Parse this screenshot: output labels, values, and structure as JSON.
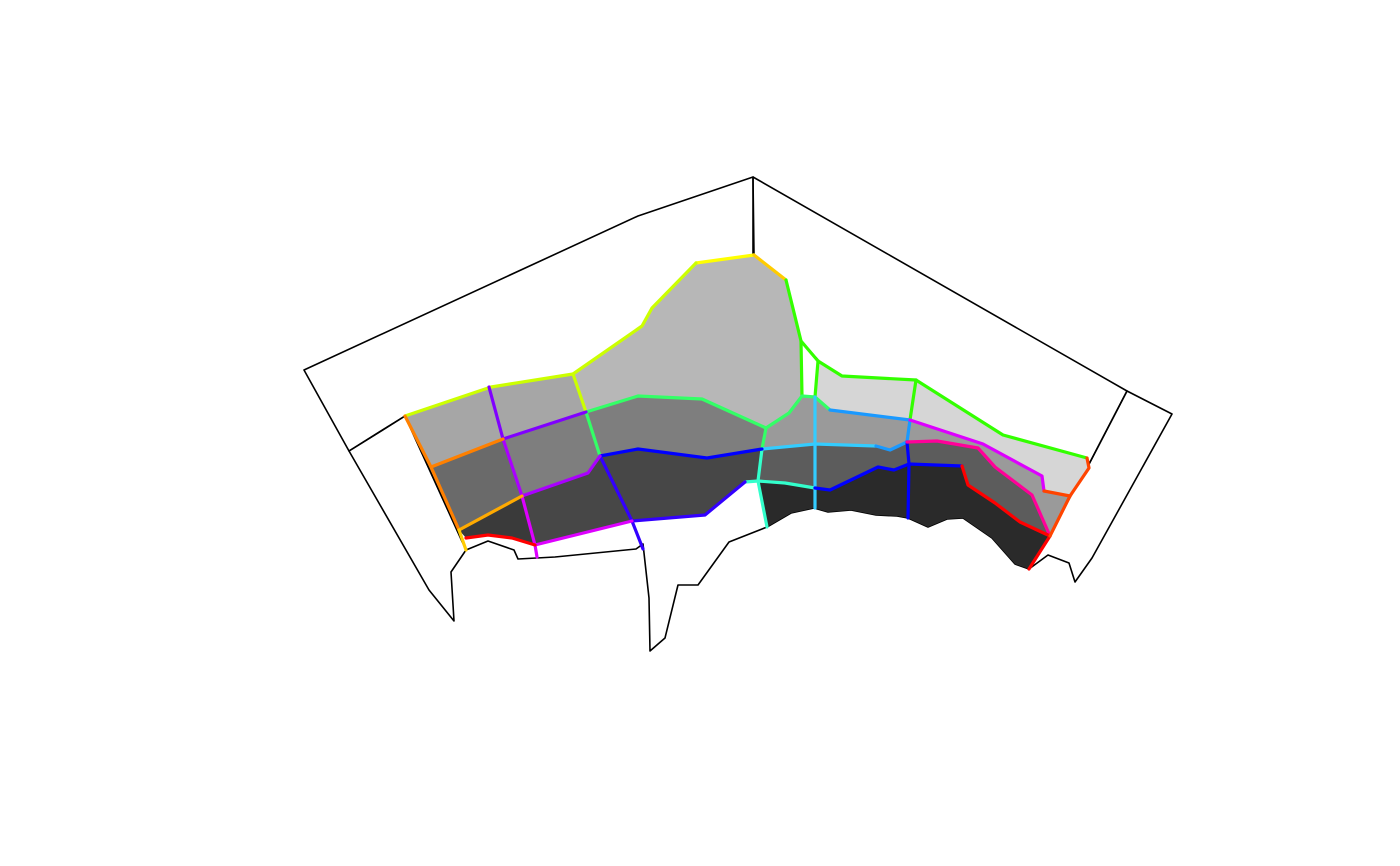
{
  "figure": {
    "kind": "3d-perspective-surface",
    "labels": [],
    "background": "#ffffff"
  },
  "palette": {
    "left_wall": "#e6e6e6",
    "left_wall_front": "#f2f2f2",
    "right_wall": "#000000",
    "right_wall_front": "#ffffff",
    "bottom": "#161616",
    "band_1": "#b7b7b7",
    "band_2": "#a6a6a6",
    "band_3": "#7e7e7e",
    "band_4": "#6a6a6a",
    "band_5": "#474747",
    "band_6": "#3a3a3a",
    "band_7": "#2a2a2a",
    "right_light": "#d6d6d6",
    "right_mid": "#9a9a9a",
    "right_dark": "#5c5c5c",
    "outline": "#000000"
  },
  "edge_colors": {
    "yellow": "#ffff00",
    "yellow_green": "#ccff00",
    "green": "#33ff00",
    "spring_green": "#33ff66",
    "turquoise": "#33ffcc",
    "cyan": "#33ccff",
    "azure": "#1a99ff",
    "blue": "#0000ff",
    "indigo": "#3300ff",
    "violet": "#8000ff",
    "purple": "#aa00ff",
    "magenta": "#dd00ff",
    "pink": "#ff0099",
    "red": "#ff0000",
    "orange_red": "#ff4400",
    "orange": "#ff8000",
    "amber": "#ffaa00",
    "gold": "#ffcc00"
  }
}
